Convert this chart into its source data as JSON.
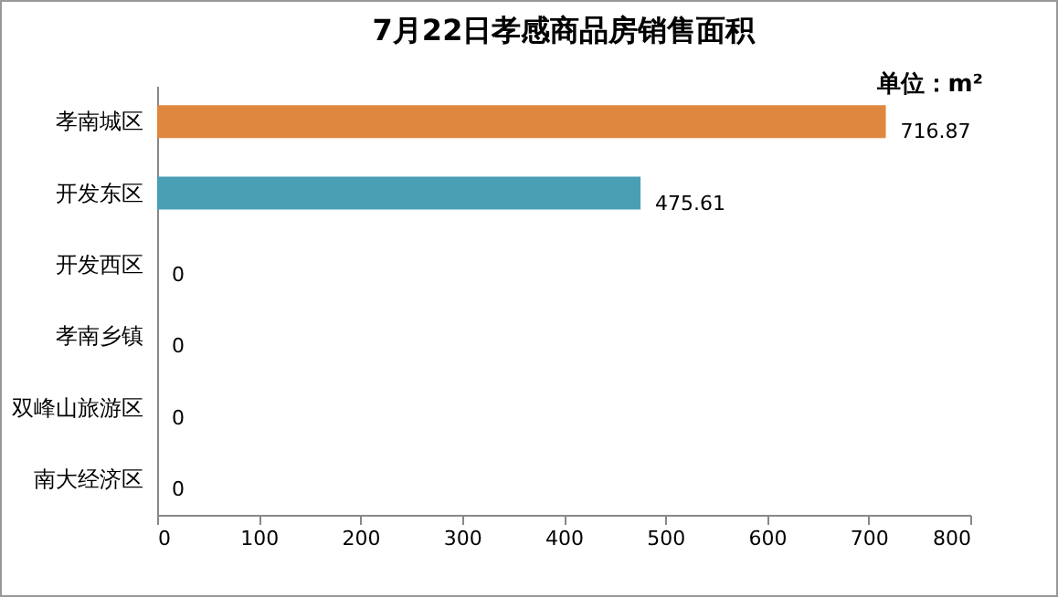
{
  "chart_data": {
    "type": "bar",
    "orientation": "horizontal",
    "title": "7月22日孝感商品房销售面积",
    "annotations": [
      "单位：m²"
    ],
    "categories": [
      "孝南城区",
      "开发东区",
      "开发西区",
      "孝南乡镇",
      "双峰山旅游区",
      "南大经济区"
    ],
    "values": [
      716.87,
      475.61,
      0,
      0,
      0,
      0
    ],
    "colors": [
      "#e0873f",
      "#4a9fb5",
      "#4a9fb5",
      "#4a9fb5",
      "#4a9fb5",
      "#4a9fb5"
    ],
    "xlim": [
      0,
      800
    ],
    "xticks": [
      0,
      100,
      200,
      300,
      400,
      500,
      600,
      700,
      800
    ],
    "data_labels": true
  }
}
